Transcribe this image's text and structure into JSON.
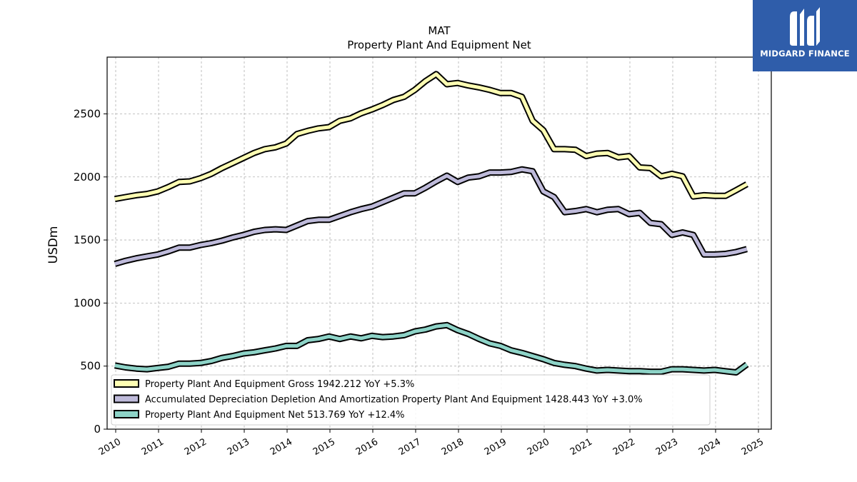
{
  "chart_data": {
    "type": "line",
    "title": "MAT",
    "subtitle": "Property Plant And Equipment Net",
    "ylabel": "USDm",
    "xlabel": "",
    "ylim": [
      0,
      2950
    ],
    "xlim": [
      2009.8,
      2025.3
    ],
    "grid": true,
    "legend_position": "lower-left",
    "x_ticks": [
      "2010",
      "2011",
      "2012",
      "2013",
      "2014",
      "2015",
      "2016",
      "2017",
      "2018",
      "2019",
      "2020",
      "2021",
      "2022",
      "2023",
      "2024",
      "2025"
    ],
    "y_ticks": [
      "0",
      "500",
      "1000",
      "1500",
      "2000",
      "2500"
    ],
    "x": [
      2009.98,
      2010.23,
      2010.48,
      2010.73,
      2010.98,
      2011.23,
      2011.48,
      2011.73,
      2011.98,
      2012.23,
      2012.48,
      2012.73,
      2012.98,
      2013.23,
      2013.48,
      2013.73,
      2013.98,
      2014.23,
      2014.48,
      2014.73,
      2014.98,
      2015.23,
      2015.48,
      2015.73,
      2015.98,
      2016.23,
      2016.48,
      2016.73,
      2016.98,
      2017.23,
      2017.48,
      2017.73,
      2017.98,
      2018.23,
      2018.48,
      2018.73,
      2018.98,
      2019.23,
      2019.48,
      2019.73,
      2019.98,
      2020.23,
      2020.48,
      2020.73,
      2020.98,
      2021.23,
      2021.48,
      2021.73,
      2021.98,
      2022.23,
      2022.48,
      2022.73,
      2022.98,
      2023.23,
      2023.48,
      2023.73,
      2023.98,
      2024.23,
      2024.48,
      2024.73
    ],
    "series": [
      {
        "name": "Property Plant And Equipment Gross",
        "color": "#ffffb3",
        "values": [
          1825,
          1840,
          1855,
          1865,
          1885,
          1920,
          1960,
          1965,
          1990,
          2025,
          2070,
          2110,
          2150,
          2190,
          2220,
          2235,
          2265,
          2340,
          2365,
          2385,
          2395,
          2445,
          2465,
          2505,
          2535,
          2570,
          2610,
          2635,
          2690,
          2760,
          2815,
          2735,
          2745,
          2725,
          2710,
          2690,
          2665,
          2665,
          2635,
          2445,
          2370,
          2220,
          2220,
          2215,
          2165,
          2185,
          2190,
          2155,
          2165,
          2075,
          2070,
          2005,
          2025,
          2005,
          1845,
          1855,
          1850,
          1850,
          1895,
          1942
        ]
      },
      {
        "name": "Accumulated Depreciation Depletion And Amortization Property Plant And Equipment",
        "color": "#bebada",
        "values": [
          1310,
          1335,
          1355,
          1370,
          1385,
          1410,
          1440,
          1440,
          1460,
          1475,
          1495,
          1520,
          1540,
          1565,
          1580,
          1585,
          1580,
          1615,
          1650,
          1660,
          1660,
          1690,
          1720,
          1745,
          1765,
          1800,
          1835,
          1870,
          1870,
          1915,
          1965,
          2010,
          1960,
          1995,
          2005,
          2035,
          2035,
          2040,
          2060,
          2045,
          1885,
          1840,
          1720,
          1730,
          1745,
          1720,
          1740,
          1745,
          1705,
          1715,
          1635,
          1625,
          1540,
          1560,
          1540,
          1385,
          1385,
          1390,
          1405,
          1428
        ]
      },
      {
        "name": "Property Plant And Equipment Net",
        "color": "#8dd3c7",
        "values": [
          505,
          490,
          480,
          475,
          485,
          495,
          520,
          520,
          525,
          540,
          565,
          580,
          600,
          610,
          625,
          640,
          660,
          660,
          705,
          715,
          735,
          715,
          735,
          720,
          740,
          730,
          735,
          745,
          775,
          790,
          815,
          825,
          785,
          755,
          715,
          680,
          660,
          625,
          605,
          580,
          555,
          525,
          510,
          500,
          480,
          465,
          470,
          465,
          460,
          460,
          455,
          455,
          475,
          475,
          470,
          465,
          470,
          460,
          450,
          513
        ]
      }
    ],
    "legend": [
      {
        "label": "Property Plant And Equipment Gross  1942.212 YoY +5.3%",
        "color": "#ffffb3"
      },
      {
        "label": "Accumulated Depreciation Depletion And Amortization Property Plant And Equipment  1428.443 YoY +3.0%",
        "color": "#bebada"
      },
      {
        "label": "Property Plant And Equipment Net  513.769 YoY +12.4%",
        "color": "#8dd3c7"
      }
    ]
  },
  "logo": {
    "text": "MIDGARD FINANCE",
    "background": "#2f5daa"
  }
}
